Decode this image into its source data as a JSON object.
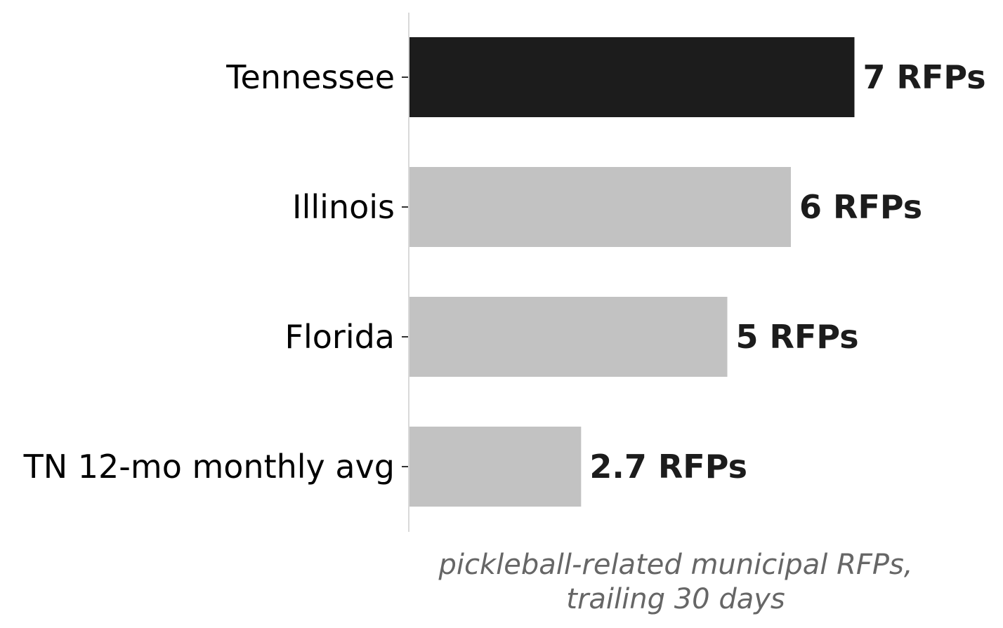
{
  "chart_data": {
    "type": "bar",
    "orientation": "horizontal",
    "categories": [
      "Tennessee",
      "Illinois",
      "Florida",
      "TN 12-mo monthly avg"
    ],
    "values": [
      7,
      6,
      5,
      2.7
    ],
    "value_labels": [
      "7 RFPs",
      "6 RFPs",
      "5 RFPs",
      "2.7 RFPs"
    ],
    "highlight_index": 0,
    "xlabel": "pickleball-related municipal RFPs, trailing 30 days",
    "xlabel_lines": [
      "pickleball-related municipal RFPs,",
      "trailing 30 days"
    ],
    "xlim": [
      0,
      7
    ],
    "grid": false,
    "colors": {
      "highlight": "#1c1c1c",
      "default": "#c2c2c2",
      "axis": "#d9d9d9",
      "label": "#1c1c1c",
      "xlabel": "#666666"
    }
  }
}
